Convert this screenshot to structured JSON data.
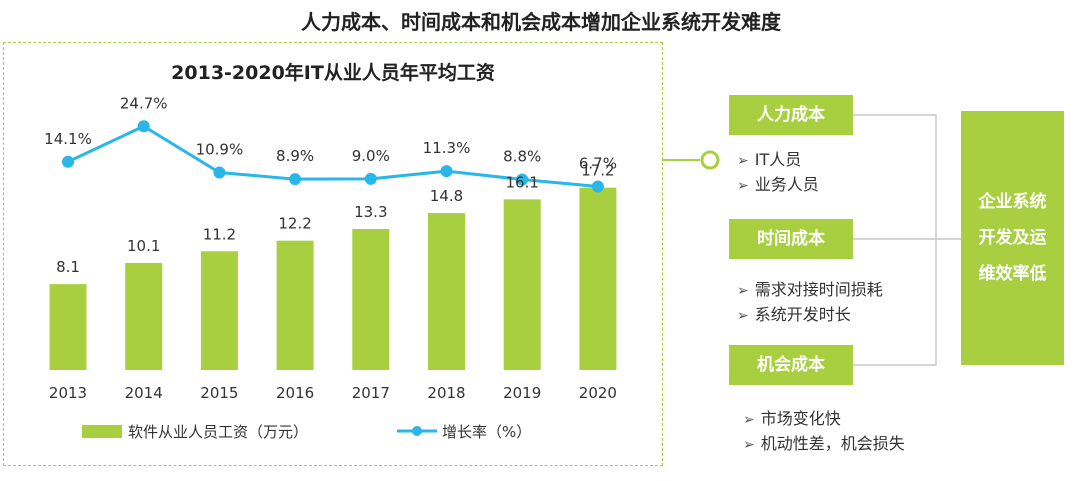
{
  "page_title": "人力成本、时间成本和机会成本增加企业系统开发难度",
  "chart_data": {
    "type": "bar+line",
    "title": "2013-2020年IT从业人员年平均工资",
    "categories": [
      "2013",
      "2014",
      "2015",
      "2016",
      "2017",
      "2018",
      "2019",
      "2020"
    ],
    "series": [
      {
        "name": "软件从业人员工资（万元）",
        "type": "bar",
        "values": [
          8.1,
          10.1,
          11.2,
          12.2,
          13.3,
          14.8,
          16.1,
          17.2
        ],
        "labels": [
          "8.1",
          "10.1",
          "11.2",
          "12.2",
          "13.3",
          "14.8",
          "16.1",
          "17.2"
        ],
        "color": "#a8cf3f"
      },
      {
        "name": "增长率（%）",
        "type": "line",
        "values": [
          14.1,
          24.7,
          10.9,
          8.9,
          9.0,
          11.3,
          8.8,
          6.7
        ],
        "labels": [
          "14.1%",
          "24.7%",
          "10.9%",
          "8.9%",
          "9.0%",
          "11.3%",
          "8.8%",
          "6.7%"
        ],
        "color": "#29b6e8"
      }
    ],
    "ylim_bar": [
      0,
      18
    ],
    "ylim_line": [
      0,
      25
    ],
    "grid": false,
    "legend_position": "bottom"
  },
  "cost_groups": [
    {
      "label": "人力成本",
      "items": [
        "IT人员",
        "业务人员"
      ]
    },
    {
      "label": "时间成本",
      "items": [
        "需求对接时间损耗",
        "系统开发时长"
      ]
    },
    {
      "label": "机会成本",
      "items": [
        "市场变化快",
        "机动性差，机会损失"
      ]
    }
  ],
  "result": {
    "lines": [
      "企业系统",
      "开发及运",
      "维效率低"
    ]
  },
  "colors": {
    "accent_green": "#a8cf3f",
    "line_blue": "#29b6e8",
    "connector_gray": "#c8c8c8"
  },
  "icons": {
    "bullet": "arrow-bullet-icon",
    "connector": "circle-connector-icon"
  }
}
